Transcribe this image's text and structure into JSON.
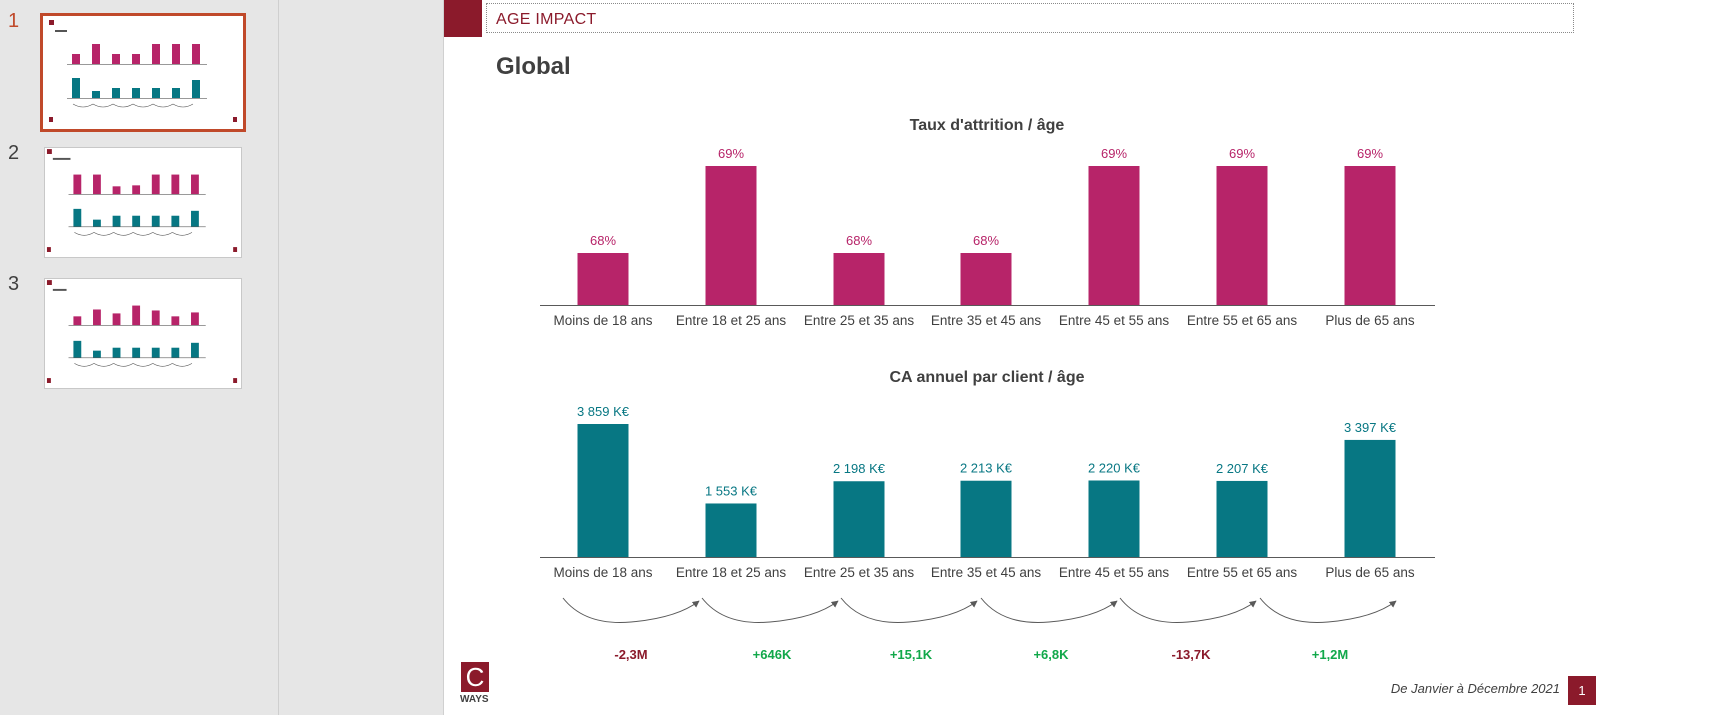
{
  "colors": {
    "accent": "#8b1a2b",
    "pink": "#b72469",
    "teal": "#077783",
    "negative": "#8b1a2b",
    "positive": "#11a84a"
  },
  "thumbnails": [
    {
      "number": "1",
      "active": true
    },
    {
      "number": "2",
      "active": false
    },
    {
      "number": "3",
      "active": false
    }
  ],
  "slide": {
    "header": "AGE IMPACT",
    "title": "Global",
    "footer_date": "De Janvier à Décembre 2021",
    "page_number": "1",
    "logo_letter": "C",
    "logo_text": "WAYS"
  },
  "chart_data": [
    {
      "type": "bar",
      "title": "Taux d'attrition / âge",
      "categories": [
        "Moins de 18 ans",
        "Entre 18 et 25 ans",
        "Entre 25 et 35 ans",
        "Entre 35 et 45 ans",
        "Entre 45 et 55 ans",
        "Entre 55 et 65 ans",
        "Plus de 65 ans"
      ],
      "values": [
        68,
        69,
        68,
        68,
        69,
        69,
        69
      ],
      "labels": [
        "68%",
        "69%",
        "68%",
        "68%",
        "69%",
        "69%",
        "69%"
      ],
      "unit": "%",
      "color": "#b72469"
    },
    {
      "type": "bar",
      "title": "CA annuel par client / âge",
      "categories": [
        "Moins de 18 ans",
        "Entre 18 et 25 ans",
        "Entre 25 et 35 ans",
        "Entre 35 et 45 ans",
        "Entre 45 et 55 ans",
        "Entre 55 et 65 ans",
        "Plus de 65 ans"
      ],
      "values": [
        3859,
        1553,
        2198,
        2213,
        2220,
        2207,
        3397
      ],
      "labels": [
        "3 859 K€",
        "1 553 K€",
        "2 198 K€",
        "2 213 K€",
        "2 220 K€",
        "2 207 K€",
        "3 397 K€"
      ],
      "unit": "K€",
      "color": "#077783",
      "deltas": [
        {
          "label": "-2,3M",
          "sign": "negative"
        },
        {
          "label": "+646K",
          "sign": "positive"
        },
        {
          "label": "+15,1K",
          "sign": "positive"
        },
        {
          "label": "+6,8K",
          "sign": "positive"
        },
        {
          "label": "-13,7K",
          "sign": "negative"
        },
        {
          "label": "+1,2M",
          "sign": "positive"
        }
      ]
    }
  ]
}
